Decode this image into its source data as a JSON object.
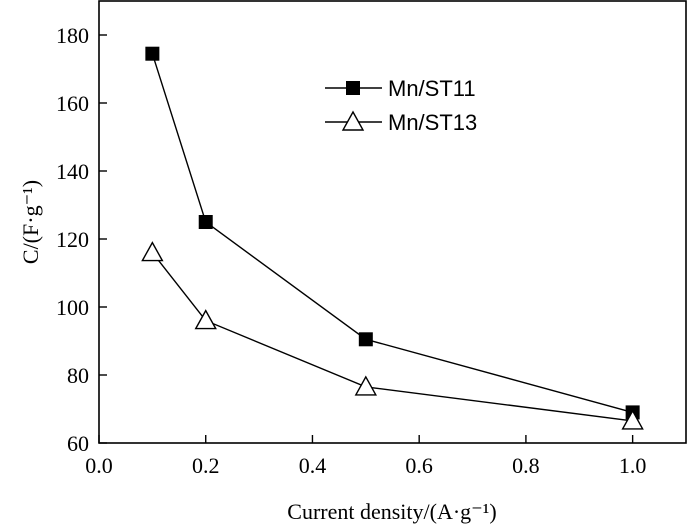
{
  "chart_data": {
    "type": "line",
    "title": "",
    "xlabel": "Current density/(A·g⁻¹)",
    "ylabel": "C/(F·g⁻¹)",
    "xlim": [
      0.0,
      1.1
    ],
    "ylim": [
      60,
      190
    ],
    "xticks": [
      "0.0",
      "0.2",
      "0.4",
      "0.6",
      "0.8",
      "1.0"
    ],
    "yticks": [
      "60",
      "80",
      "100",
      "120",
      "140",
      "160",
      "180"
    ],
    "grid": false,
    "legend_position": "top-right",
    "series": [
      {
        "name": "Mn/ST11",
        "marker": "filled-square",
        "color": "#000000",
        "x": [
          0.1,
          0.2,
          0.5,
          1.0
        ],
        "y": [
          174.5,
          125,
          90.5,
          69
        ]
      },
      {
        "name": "Mn/ST13",
        "marker": "open-triangle",
        "color": "#000000",
        "x": [
          0.1,
          0.2,
          0.5,
          1.0
        ],
        "y": [
          116,
          96,
          76.5,
          66.5
        ]
      }
    ]
  }
}
